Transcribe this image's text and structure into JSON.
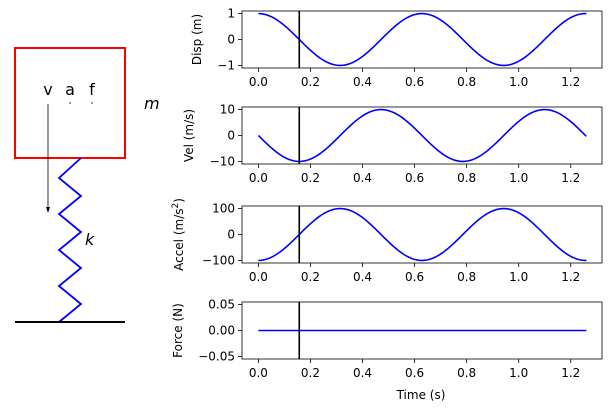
{
  "diagram": {
    "mass_label": "m",
    "spring_label": "k",
    "arrow_labels": [
      "v",
      "a",
      "f"
    ],
    "mass_color": "#ff0000",
    "spring_color": "#0000ff",
    "ground_color": "#000000"
  },
  "chart_data": [
    {
      "type": "line",
      "ylabel": "Disp (m)",
      "xlabel": "",
      "xlim": [
        -0.063,
        1.32
      ],
      "ylim": [
        -1.1,
        1.1
      ],
      "xticks": [
        "0.0",
        "0.2",
        "0.4",
        "0.6",
        "0.8",
        "1.0",
        "1.2"
      ],
      "yticks": [
        {
          "v": 1,
          "label": "1"
        },
        {
          "v": 0,
          "label": "0"
        },
        {
          "v": -1,
          "label": "−1"
        }
      ],
      "series": [
        {
          "name": "displacement",
          "function": "cos",
          "amplitude": 1,
          "omega": 10,
          "t_start": 0,
          "t_end": 1.26,
          "color": "#0000ff"
        }
      ],
      "marker_time": 0.157
    },
    {
      "type": "line",
      "ylabel": "Vel (m/s)",
      "xlabel": "",
      "xlim": [
        -0.063,
        1.32
      ],
      "ylim": [
        -11,
        11
      ],
      "xticks": [
        "0.0",
        "0.2",
        "0.4",
        "0.6",
        "0.8",
        "1.0",
        "1.2"
      ],
      "yticks": [
        {
          "v": 10,
          "label": "10"
        },
        {
          "v": 0,
          "label": "0"
        },
        {
          "v": -10,
          "label": "−10"
        }
      ],
      "series": [
        {
          "name": "velocity",
          "function": "-sin",
          "amplitude": 10,
          "omega": 10,
          "t_start": 0,
          "t_end": 1.26,
          "color": "#0000ff"
        }
      ],
      "marker_time": 0.157
    },
    {
      "type": "line",
      "ylabel_main": "Accel (m/s",
      "ylabel_sup": "2",
      "ylabel_end": ")",
      "xlabel": "",
      "xlim": [
        -0.063,
        1.32
      ],
      "ylim": [
        -110,
        110
      ],
      "xticks": [
        "0.0",
        "0.2",
        "0.4",
        "0.6",
        "0.8",
        "1.0",
        "1.2"
      ],
      "yticks": [
        {
          "v": 100,
          "label": "100"
        },
        {
          "v": 0,
          "label": "0"
        },
        {
          "v": -100,
          "label": "−100"
        }
      ],
      "series": [
        {
          "name": "acceleration",
          "function": "-cos",
          "amplitude": 100,
          "omega": 10,
          "t_start": 0,
          "t_end": 1.26,
          "color": "#0000ff"
        }
      ],
      "marker_time": 0.157
    },
    {
      "type": "line",
      "ylabel": "Force (N)",
      "xlabel": "Time (s)",
      "xlim": [
        -0.063,
        1.32
      ],
      "ylim": [
        -0.055,
        0.055
      ],
      "xticks": [
        "0.0",
        "0.2",
        "0.4",
        "0.6",
        "0.8",
        "1.0",
        "1.2"
      ],
      "yticks": [
        {
          "v": 0.05,
          "label": "0.05"
        },
        {
          "v": 0,
          "label": "0.00"
        },
        {
          "v": -0.05,
          "label": "−0.05"
        }
      ],
      "series": [
        {
          "name": "force",
          "function": "zero",
          "amplitude": 0,
          "omega": 10,
          "t_start": 0,
          "t_end": 1.26,
          "color": "#0000ff"
        }
      ],
      "marker_time": 0.157
    }
  ]
}
